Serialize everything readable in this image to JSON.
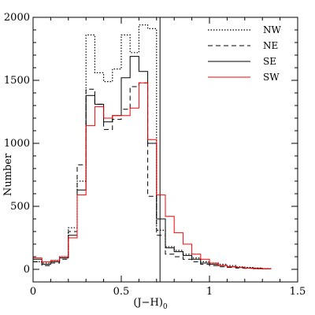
{
  "chart_data": {
    "type": "histogram",
    "title": "",
    "xlabel_main": "(J−H)",
    "xlabel_sub": "0",
    "ylabel": "Number",
    "xlim": [
      0,
      1.5
    ],
    "ylim": [
      -100,
      2000
    ],
    "x_ticks": [
      0,
      0.5,
      1,
      1.5
    ],
    "x_tick_labels": [
      "0",
      "0.5",
      "1",
      "1.5"
    ],
    "y_ticks": [
      0,
      500,
      1000,
      1500,
      2000
    ],
    "y_tick_labels": [
      "0",
      "500",
      "1000",
      "1500",
      "2000"
    ],
    "bin_width": 0.05,
    "vertical_line_x": 0.72,
    "legend_position": "top-right",
    "series": [
      {
        "name": "NW",
        "style": "dotted",
        "color": "#000000",
        "x": [
          0,
          0.05,
          0.1,
          0.15,
          0.2,
          0.25,
          0.3,
          0.35,
          0.4,
          0.45,
          0.5,
          0.55,
          0.6,
          0.65,
          0.7,
          0.75,
          0.8,
          0.85,
          0.9,
          0.95,
          1.0,
          1.05,
          1.1,
          1.15,
          1.2,
          1.25,
          1.3
        ],
        "values": [
          60,
          50,
          70,
          100,
          330,
          700,
          1860,
          1560,
          1490,
          1590,
          1860,
          1720,
          1940,
          1910,
          310,
          180,
          150,
          120,
          90,
          60,
          50,
          40,
          30,
          20,
          15,
          10,
          5
        ]
      },
      {
        "name": "NE",
        "style": "dashed",
        "color": "#000000",
        "x": [
          0,
          0.05,
          0.1,
          0.15,
          0.2,
          0.25,
          0.3,
          0.35,
          0.4,
          0.45,
          0.5,
          0.55,
          0.6,
          0.65,
          0.7,
          0.75,
          0.8,
          0.85,
          0.9,
          0.95,
          1.0,
          1.05,
          1.1,
          1.15,
          1.2,
          1.25,
          1.3
        ],
        "values": [
          60,
          30,
          50,
          80,
          300,
          830,
          1430,
          1310,
          1110,
          1190,
          1270,
          1450,
          1480,
          580,
          270,
          120,
          100,
          80,
          60,
          40,
          30,
          20,
          15,
          10,
          8,
          5,
          3
        ]
      },
      {
        "name": "SE",
        "style": "solid",
        "color": "#000000",
        "x": [
          0,
          0.05,
          0.1,
          0.15,
          0.2,
          0.25,
          0.3,
          0.35,
          0.4,
          0.45,
          0.5,
          0.55,
          0.6,
          0.65,
          0.7,
          0.75,
          0.8,
          0.85,
          0.9,
          0.95,
          1.0,
          1.05,
          1.1,
          1.15,
          1.2,
          1.25,
          1.3
        ],
        "values": [
          80,
          40,
          60,
          90,
          270,
          630,
          1380,
          1310,
          1170,
          1220,
          1520,
          1690,
          1570,
          1000,
          400,
          170,
          140,
          110,
          80,
          50,
          40,
          30,
          20,
          15,
          10,
          8,
          5
        ]
      },
      {
        "name": "SW",
        "style": "solid",
        "color": "#ff0000",
        "x": [
          0,
          0.05,
          0.1,
          0.15,
          0.2,
          0.25,
          0.3,
          0.35,
          0.4,
          0.45,
          0.5,
          0.55,
          0.6,
          0.65,
          0.7,
          0.75,
          0.8,
          0.85,
          0.9,
          0.95,
          1.0,
          1.05,
          1.1,
          1.15,
          1.2,
          1.25,
          1.3
        ],
        "values": [
          90,
          60,
          70,
          100,
          250,
          590,
          1140,
          1290,
          1200,
          1220,
          1220,
          1280,
          1480,
          1030,
          590,
          420,
          290,
          200,
          120,
          80,
          50,
          30,
          20,
          15,
          10,
          5,
          3
        ]
      }
    ]
  }
}
